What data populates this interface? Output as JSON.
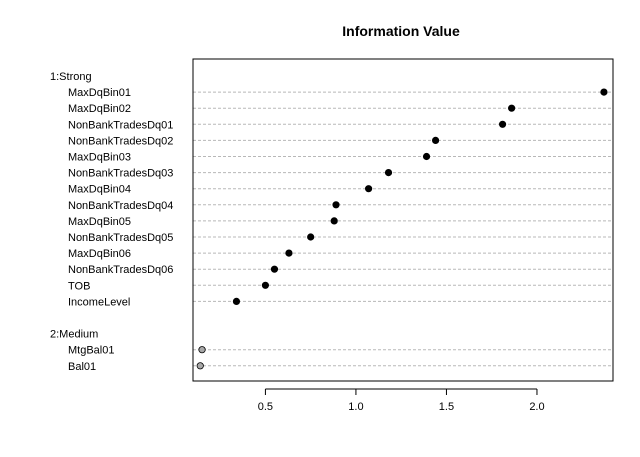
{
  "chart_data": {
    "type": "scatter",
    "title": "Information Value",
    "xlabel": "",
    "ylabel": "",
    "xlim": [
      0.1,
      2.42
    ],
    "xticks": [
      0.5,
      1.0,
      1.5,
      2.0
    ],
    "xtick_labels": [
      "0.5",
      "1.0",
      "1.5",
      "2.0"
    ],
    "grid": true,
    "groups": [
      {
        "name": "1:Strong",
        "point_color": "#000000",
        "items": [
          {
            "label": "MaxDqBin01",
            "value": 2.37
          },
          {
            "label": "MaxDqBin02",
            "value": 1.86
          },
          {
            "label": "NonBankTradesDq01",
            "value": 1.81
          },
          {
            "label": "NonBankTradesDq02",
            "value": 1.44
          },
          {
            "label": "MaxDqBin03",
            "value": 1.39
          },
          {
            "label": "NonBankTradesDq03",
            "value": 1.18
          },
          {
            "label": "MaxDqBin04",
            "value": 1.07
          },
          {
            "label": "NonBankTradesDq04",
            "value": 0.89
          },
          {
            "label": "MaxDqBin05",
            "value": 0.88
          },
          {
            "label": "NonBankTradesDq05",
            "value": 0.75
          },
          {
            "label": "MaxDqBin06",
            "value": 0.63
          },
          {
            "label": "NonBankTradesDq06",
            "value": 0.55
          },
          {
            "label": "TOB",
            "value": 0.5
          },
          {
            "label": "IncomeLevel",
            "value": 0.34
          }
        ]
      },
      {
        "name": "2:Medium",
        "point_color": "#a8a8a8",
        "items": [
          {
            "label": "MtgBal01",
            "value": 0.15
          },
          {
            "label": "Bal01",
            "value": 0.14
          }
        ]
      }
    ]
  }
}
